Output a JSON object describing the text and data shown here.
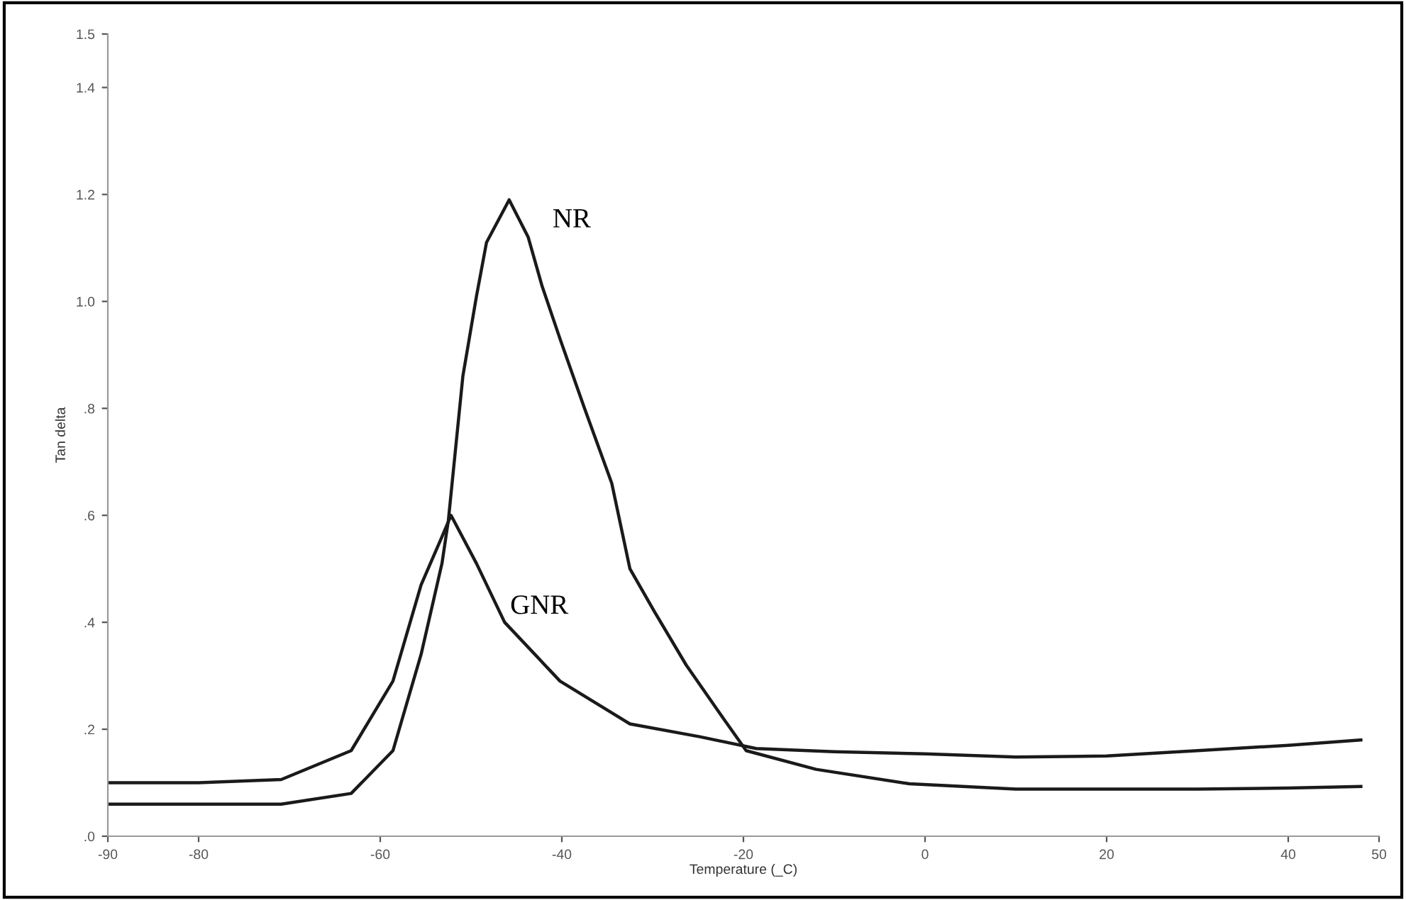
{
  "chart_data": {
    "type": "line",
    "xlabel": "Temperature (_C)",
    "ylabel": "Tan delta",
    "xlim": [
      -90,
      50
    ],
    "xticks": [
      -90,
      -80,
      -60,
      -40,
      -20,
      0,
      20,
      40,
      50
    ],
    "ylim": [
      0,
      1.5
    ],
    "yticks": [
      {
        "value": 0,
        "label": ".0"
      },
      {
        "value": 0.2,
        "label": ".2"
      },
      {
        "value": 0.4,
        "label": ".4"
      },
      {
        "value": 0.6,
        "label": ".6"
      },
      {
        "value": 0.8,
        "label": ".8"
      },
      {
        "value": 1.0,
        "label": "1.0"
      },
      {
        "value": 1.2,
        "label": "1.2"
      },
      {
        "value": 1.4,
        "label": "1.4"
      },
      {
        "value": 1.5,
        "label": "1.5"
      }
    ],
    "grid": false,
    "legend": false,
    "marker": "none",
    "line_style": "solid",
    "series": [
      {
        "name": "NR",
        "color": "#1a1a1a",
        "x": [
          -90,
          -80,
          -70.9,
          -63.2,
          -58.6,
          -55.5,
          -53.2,
          -52.5,
          -50.9,
          -49.4,
          -48.3,
          -45.8,
          -43.7,
          -42.2,
          -40.2,
          -37.5,
          -34.5,
          -32.5,
          -29.8,
          -26.3,
          -22.2,
          -19.7,
          -12,
          -1.7,
          10,
          20,
          30,
          40,
          48
        ],
        "values": [
          0.06,
          0.06,
          0.06,
          0.08,
          0.16,
          0.34,
          0.51,
          0.59,
          0.86,
          1.01,
          1.11,
          1.19,
          1.12,
          1.03,
          0.93,
          0.8,
          0.66,
          0.5,
          0.42,
          0.32,
          0.22,
          0.16,
          0.125,
          0.098,
          0.088,
          0.088,
          0.088,
          0.09,
          0.093
        ]
      },
      {
        "name": "GNR",
        "color": "#1a1a1a",
        "x": [
          -90,
          -80,
          -70.9,
          -63.2,
          -58.6,
          -55.5,
          -53.2,
          -52.2,
          -49.4,
          -46.3,
          -40.2,
          -32.5,
          -24.8,
          -18.6,
          -10,
          0,
          10,
          20,
          30,
          40,
          48
        ],
        "values": [
          0.1,
          0.1,
          0.106,
          0.16,
          0.29,
          0.47,
          0.56,
          0.6,
          0.51,
          0.4,
          0.29,
          0.21,
          0.186,
          0.164,
          0.158,
          0.154,
          0.148,
          0.15,
          0.16,
          0.17,
          0.18
        ]
      }
    ]
  }
}
